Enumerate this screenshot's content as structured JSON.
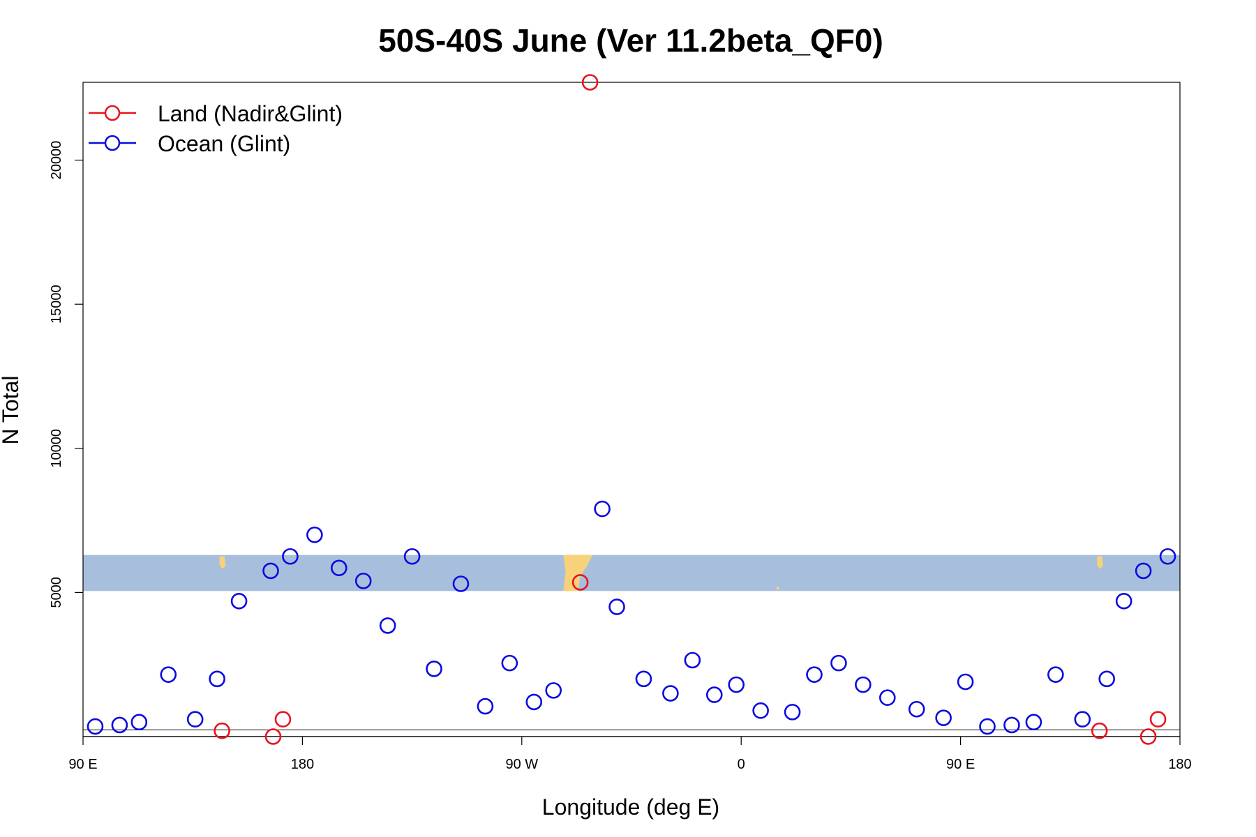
{
  "chart_data": {
    "type": "scatter",
    "title": "50S-40S June (Ver 11.2beta_QF0)",
    "xlabel": "Longitude (deg E)",
    "ylabel": "N Total",
    "xlim": [
      90,
      540
    ],
    "ylim": [
      0,
      22700
    ],
    "x_ticks": [
      {
        "value": 90,
        "label": "90 E"
      },
      {
        "value": 180,
        "label": "180"
      },
      {
        "value": 270,
        "label": "90 W"
      },
      {
        "value": 360,
        "label": "0"
      },
      {
        "value": 450,
        "label": "90 E"
      },
      {
        "value": 540,
        "label": "180"
      }
    ],
    "y_ticks": [
      {
        "value": 5000,
        "label": "5000"
      },
      {
        "value": 10000,
        "label": "10000"
      },
      {
        "value": 15000,
        "label": "15000"
      },
      {
        "value": 20000,
        "label": "20000"
      }
    ],
    "legend": {
      "position": "top-left",
      "entries": [
        {
          "name": "Land (Nadir&Glint)",
          "color": "#e8141c"
        },
        {
          "name": "Ocean (Glint)",
          "color": "#0b0be0"
        }
      ]
    },
    "latitude_band": {
      "ymin": 5050,
      "ymax": 6300,
      "color": "#a8bedd",
      "land_color": "#f7d27a"
    },
    "series": [
      {
        "name": "Land (Nadir&Glint)",
        "color": "#e8141c",
        "x": [
          147,
          168,
          172,
          294,
          298,
          507,
          527,
          531
        ],
        "y": [
          200,
          0,
          600,
          5350,
          22700,
          200,
          0,
          600
        ]
      },
      {
        "name": "Ocean (Glint)",
        "color": "#0b0be0",
        "x": [
          95,
          105,
          113,
          125,
          136,
          145,
          154,
          167,
          175,
          185,
          195,
          205,
          215,
          225,
          234,
          245,
          255,
          265,
          275,
          283,
          303,
          309,
          320,
          331,
          340,
          349,
          358,
          368,
          381,
          390,
          400,
          410,
          420,
          432,
          443,
          452,
          461,
          471,
          480,
          489,
          500,
          510,
          517,
          525,
          535
        ],
        "y": [
          350,
          400,
          500,
          2150,
          600,
          2000,
          4700,
          5750,
          6250,
          7000,
          5850,
          5400,
          3850,
          6250,
          2350,
          5300,
          1050,
          2550,
          1200,
          1600,
          7900,
          4500,
          2000,
          1500,
          2650,
          1450,
          1800,
          900,
          850,
          2150,
          2550,
          1800,
          1350,
          950,
          650,
          1900,
          350,
          400,
          500,
          2150,
          600,
          2000,
          4700,
          5750,
          6250
        ]
      }
    ]
  }
}
